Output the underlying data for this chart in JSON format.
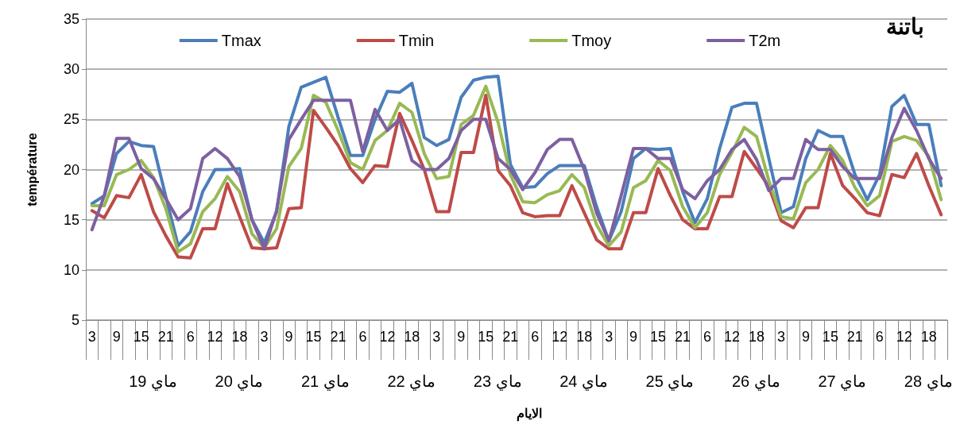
{
  "chart_data": {
    "type": "line",
    "title": "باتنة",
    "xlabel": "الايام",
    "ylabel": "température",
    "categories": [
      "3",
      null,
      "9",
      null,
      "15",
      null,
      "21",
      null,
      "6",
      null,
      "12",
      null,
      "18",
      null,
      "3",
      null,
      "9",
      null,
      "15",
      null,
      "21",
      null,
      "6",
      null,
      "12",
      null,
      "18",
      null,
      "3",
      null,
      "9",
      null,
      "15",
      null,
      "21",
      null,
      "6",
      null,
      "12",
      null,
      "18",
      null,
      "3",
      null,
      "9",
      null,
      "15",
      null,
      "21",
      null,
      "6",
      null,
      "12",
      null,
      "18",
      null,
      "3",
      null,
      "9",
      null,
      "15",
      null,
      "21",
      null,
      "6",
      null,
      "12",
      null,
      "18",
      null
    ],
    "annotations": [
      "19 ماي",
      "20 ماي",
      "21 ماي",
      "22 ماي",
      "23 ماي",
      "24 ماي",
      "25 ماي",
      "26 ماي",
      "27 ماي",
      "28 ماي"
    ],
    "series": [
      {
        "name": "Tmax",
        "color": "#4a7ebb",
        "values": [
          16.6,
          17.4,
          21.6,
          22.8,
          22.4,
          22.3,
          17.3,
          12.4,
          13.8,
          17.8,
          20,
          20,
          20.1,
          15,
          12.7,
          15.8,
          24.3,
          28.2,
          28.7,
          29.2,
          25.2,
          21.4,
          21.4,
          25,
          27.8,
          27.7,
          28.6,
          23.2,
          22.4,
          23,
          27.2,
          28.9,
          29.2,
          29.3,
          20.5,
          18.2,
          18.3,
          19.6,
          20.4,
          20.4,
          20.4,
          16.3,
          12.9,
          15.8,
          21.1,
          22.1,
          22,
          22.1,
          17.8,
          14.7,
          17.1,
          22.1,
          26.2,
          26.6,
          26.6,
          21.1,
          15.7,
          16.3,
          21.1,
          23.9,
          23.3,
          23.3,
          19.5,
          17,
          19.5,
          26.3,
          27.4,
          24.5,
          24.5,
          18.4
        ]
      },
      {
        "name": "Tmin",
        "color": "#be4b48",
        "values": [
          15.9,
          15.2,
          17.4,
          17.2,
          19.5,
          15.8,
          13.4,
          11.3,
          11.2,
          14.1,
          14.1,
          18.6,
          15.3,
          12.2,
          12.1,
          12.2,
          16.1,
          16.2,
          25.9,
          24.2,
          22.4,
          20.1,
          18.7,
          20.4,
          20.3,
          25.6,
          22.9,
          20,
          15.8,
          15.8,
          21.7,
          21.7,
          27.4,
          19.9,
          18.4,
          15.7,
          15.3,
          15.4,
          15.4,
          18.4,
          15.7,
          13,
          12.1,
          12.1,
          15.7,
          15.7,
          20.1,
          17.4,
          15,
          14.1,
          14.1,
          17.3,
          17.3,
          21.8,
          20.1,
          18.3,
          14.9,
          14.2,
          16.2,
          16.2,
          21.6,
          18.4,
          17.1,
          15.7,
          15.4,
          19.5,
          19.2,
          21.6,
          18.4,
          15.5
        ]
      },
      {
        "name": "Tmoy",
        "color": "#98b954",
        "values": [
          16.4,
          16.4,
          19.5,
          20,
          20.9,
          19.2,
          16.1,
          11.8,
          12.6,
          15.8,
          17.1,
          19.3,
          17.8,
          13.6,
          12.2,
          14.1,
          20.3,
          22.1,
          27.4,
          26.7,
          23.9,
          20.7,
          20,
          22.9,
          23.9,
          26.6,
          25.7,
          21.6,
          19.1,
          19.3,
          24.5,
          25.4,
          28.3,
          24.7,
          19.5,
          16.8,
          16.7,
          17.5,
          17.9,
          19.5,
          18.2,
          14.5,
          12.4,
          13.8,
          18.2,
          18.9,
          20.9,
          19.9,
          16.3,
          14.2,
          15.7,
          19.5,
          21.7,
          24.2,
          23.3,
          18.9,
          15.3,
          15.1,
          18.7,
          20,
          22.4,
          20.9,
          18.2,
          16.4,
          17.4,
          22.8,
          23.3,
          22.9,
          21.3,
          17
        ]
      },
      {
        "name": "T2m",
        "color": "#7d60a0",
        "values": [
          14,
          17.4,
          23.1,
          23.1,
          20.1,
          19.1,
          17.1,
          15,
          16.1,
          21.1,
          22.1,
          21.1,
          19.3,
          15,
          12.1,
          15.9,
          23,
          25,
          26.9,
          26.9,
          26.9,
          26.9,
          21.8,
          26,
          23.9,
          25,
          20.9,
          20,
          20,
          21.1,
          23.9,
          25,
          25,
          21.1,
          20,
          18,
          19.7,
          22,
          23,
          23,
          20,
          15.7,
          12.9,
          17.4,
          22.1,
          22.1,
          21.1,
          21.1,
          18,
          17.1,
          18.9,
          20,
          22,
          23,
          21,
          17.9,
          19.1,
          19.1,
          23,
          22,
          22,
          20.3,
          19.1,
          19.1,
          19.1,
          23.2,
          26.1,
          23.9,
          21.1,
          19.1
        ]
      }
    ],
    "ylim": [
      5,
      35
    ],
    "yticks": [
      5,
      10,
      15,
      20,
      25,
      30,
      35
    ],
    "grid": "y",
    "legend": "top",
    "marker": "none",
    "line_style": "solid"
  }
}
